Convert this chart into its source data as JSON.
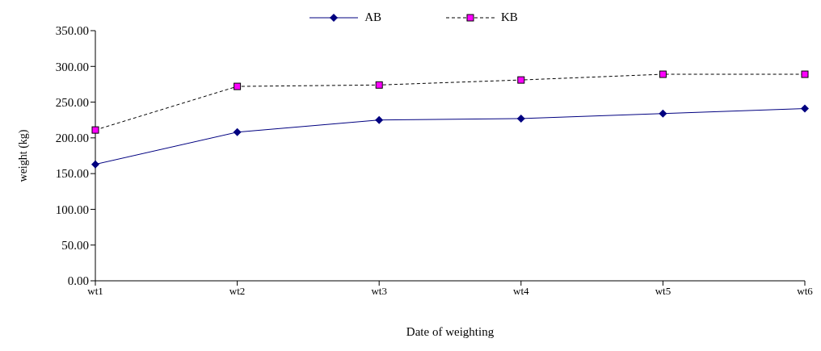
{
  "chart_data": {
    "type": "line",
    "xlabel": "Date of weighting",
    "ylabel": "weight (kg)",
    "categories": [
      "wt1",
      "wt2",
      "wt3",
      "wt4",
      "wt5",
      "wt6"
    ],
    "series": [
      {
        "name": "AB",
        "color": "#000080",
        "marker": "diamond",
        "line_style": "solid",
        "values": [
          163,
          208,
          225,
          227,
          234,
          241
        ]
      },
      {
        "name": "KB",
        "color": "#ff00ff",
        "marker": "square",
        "line_style": "dashed",
        "values": [
          211,
          272,
          274,
          281,
          289,
          289
        ]
      }
    ],
    "ylim": [
      0,
      350
    ],
    "yticks": [
      {
        "value": 0,
        "label": "0.00"
      },
      {
        "value": 50,
        "label": "50.00"
      },
      {
        "value": 100,
        "label": "100.00"
      },
      {
        "value": 150,
        "label": "150.00"
      },
      {
        "value": 200,
        "label": "200.00"
      },
      {
        "value": 250,
        "label": "250.00"
      },
      {
        "value": 300,
        "label": "300.00"
      },
      {
        "value": 350,
        "label": "350.00"
      }
    ],
    "grid": false,
    "legend": "top"
  }
}
